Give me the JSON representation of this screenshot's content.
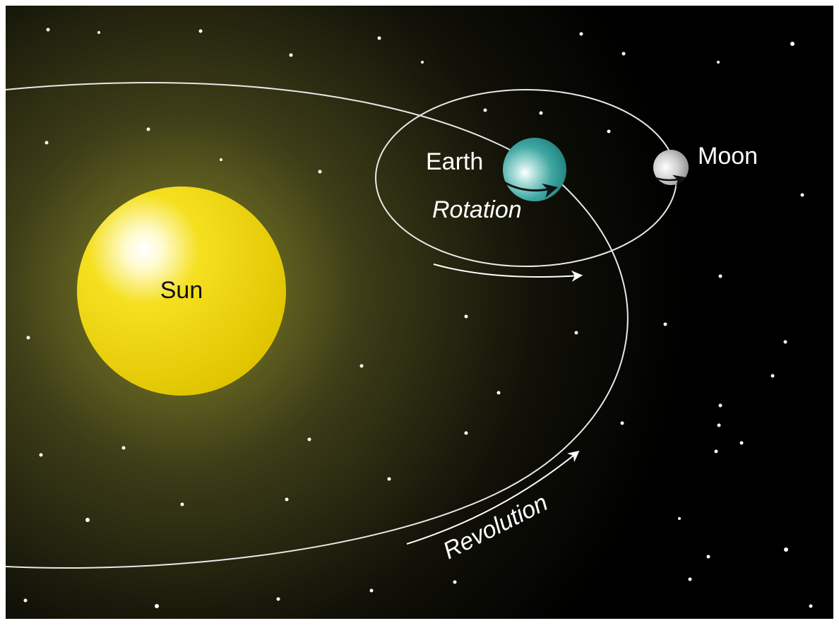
{
  "labels": {
    "sun": "Sun",
    "earth": "Earth",
    "moon": "Moon",
    "rotation": "Rotation",
    "revolution": "Revolution"
  }
}
